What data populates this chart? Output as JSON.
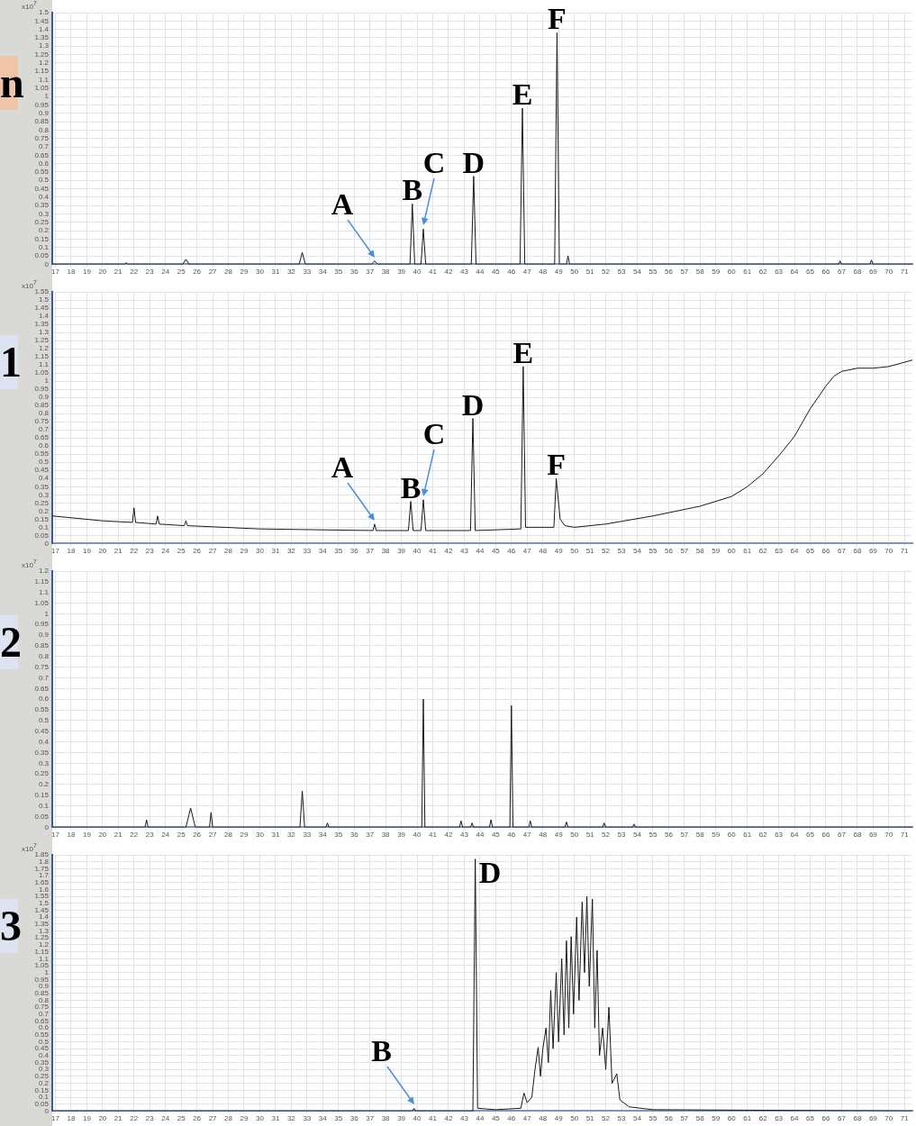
{
  "chart_data": [
    {
      "type": "line",
      "title": "n",
      "ylabel": "x10$^{7}$",
      "xlim": [
        16.8,
        71.5
      ],
      "ylim": [
        0,
        1.5
      ],
      "grid": true,
      "xticks": [
        17,
        18,
        19,
        20,
        21,
        22,
        23,
        24,
        25,
        26,
        27,
        28,
        29,
        30,
        31,
        32,
        33,
        34,
        35,
        36,
        37,
        38,
        39,
        40,
        41,
        42,
        43,
        44,
        45,
        46,
        47,
        48,
        49,
        50,
        51,
        52,
        53,
        54,
        55,
        56,
        57,
        58,
        59,
        60,
        61,
        62,
        63,
        64,
        65,
        66,
        67,
        68,
        69,
        70,
        71
      ],
      "yticks": [
        0,
        0.05,
        0.1,
        0.15,
        0.2,
        0.25,
        0.3,
        0.35,
        0.4,
        0.45,
        0.5,
        0.55,
        0.6,
        0.65,
        0.7,
        0.75,
        0.8,
        0.85,
        0.9,
        0.95,
        1,
        1.05,
        1.1,
        1.15,
        1.2,
        1.25,
        1.3,
        1.35,
        1.4,
        1.45,
        1.5
      ],
      "series": [
        {
          "color": "#1a1a1a",
          "x": [
            16.8,
            21.4,
            21.5,
            21.6,
            25.1,
            25.3,
            25.5,
            32.5,
            32.7,
            32.9,
            37.1,
            37.3,
            37.5,
            39.55,
            39.7,
            39.85,
            40.25,
            40.4,
            40.55,
            43.45,
            43.6,
            43.75,
            46.55,
            46.7,
            46.85,
            48.75,
            48.9,
            49.05,
            49.5,
            49.6,
            49.7,
            66.8,
            66.9,
            67.0,
            68.8,
            68.9,
            69.0,
            71.5
          ],
          "values": [
            0,
            0,
            0.01,
            0,
            0,
            0.03,
            0,
            0,
            0.07,
            0,
            0,
            0.02,
            0,
            0,
            0.36,
            0,
            0,
            0.21,
            0,
            0,
            0.525,
            0,
            0,
            0.93,
            0,
            0,
            1.38,
            0,
            0,
            0.05,
            0,
            0,
            0.02,
            0,
            0,
            0.025,
            0,
            0
          ]
        }
      ],
      "annotations": [
        {
          "text": "A",
          "x": 37.3,
          "y": 0.02
        },
        {
          "text": "B",
          "x": 39.7,
          "y": 0.36
        },
        {
          "text": "C",
          "x": 40.4,
          "y": 0.21
        },
        {
          "text": "D",
          "x": 43.6,
          "y": 0.525
        },
        {
          "text": "E",
          "x": 46.7,
          "y": 0.93
        },
        {
          "text": "F",
          "x": 48.9,
          "y": 1.38
        }
      ]
    },
    {
      "type": "line",
      "title": "1",
      "ylabel": "x10$^{7}$",
      "xlim": [
        16.8,
        71.5
      ],
      "ylim": [
        0,
        1.55
      ],
      "grid": true,
      "xticks": [
        17,
        18,
        19,
        20,
        21,
        22,
        23,
        24,
        25,
        26,
        27,
        28,
        29,
        30,
        31,
        32,
        33,
        34,
        35,
        36,
        37,
        38,
        39,
        40,
        41,
        42,
        43,
        44,
        45,
        46,
        47,
        48,
        49,
        50,
        51,
        52,
        53,
        54,
        55,
        56,
        57,
        58,
        59,
        60,
        61,
        62,
        63,
        64,
        65,
        66,
        67,
        68,
        69,
        70,
        71
      ],
      "yticks": [
        0,
        0.05,
        0.1,
        0.15,
        0.2,
        0.25,
        0.3,
        0.35,
        0.4,
        0.45,
        0.5,
        0.55,
        0.6,
        0.65,
        0.7,
        0.75,
        0.8,
        0.85,
        0.9,
        0.95,
        1,
        1.05,
        1.1,
        1.15,
        1.2,
        1.25,
        1.3,
        1.35,
        1.4,
        1.45,
        1.5,
        1.55
      ],
      "series": [
        {
          "color": "#1a1a1a",
          "x": [
            16.8,
            20,
            21.9,
            22,
            22.1,
            23.4,
            23.5,
            23.6,
            25.2,
            25.3,
            25.4,
            30,
            37.2,
            37.3,
            37.4,
            39.45,
            39.6,
            39.75,
            40.25,
            40.4,
            40.55,
            43.4,
            43.55,
            43.7,
            46.6,
            46.75,
            46.9,
            48.7,
            48.85,
            49.1,
            49.4,
            50,
            52,
            55,
            58,
            60,
            61,
            62,
            63,
            64,
            65,
            66,
            66.5,
            67,
            68,
            69,
            70,
            71.5
          ],
          "values": [
            0.17,
            0.14,
            0.13,
            0.22,
            0.13,
            0.12,
            0.17,
            0.12,
            0.11,
            0.14,
            0.11,
            0.09,
            0.08,
            0.12,
            0.08,
            0.08,
            0.26,
            0.08,
            0.08,
            0.27,
            0.08,
            0.08,
            0.77,
            0.08,
            0.09,
            1.09,
            0.1,
            0.1,
            0.4,
            0.15,
            0.11,
            0.1,
            0.12,
            0.17,
            0.23,
            0.29,
            0.35,
            0.43,
            0.54,
            0.66,
            0.83,
            0.97,
            1.03,
            1.06,
            1.08,
            1.08,
            1.09,
            1.13
          ]
        }
      ],
      "annotations": [
        {
          "text": "A",
          "x": 37.3,
          "y": 0.12
        },
        {
          "text": "B",
          "x": 39.6,
          "y": 0.26
        },
        {
          "text": "C",
          "x": 40.4,
          "y": 0.27
        },
        {
          "text": "D",
          "x": 43.55,
          "y": 0.77
        },
        {
          "text": "E",
          "x": 46.75,
          "y": 1.09
        },
        {
          "text": "F",
          "x": 48.85,
          "y": 0.4
        }
      ]
    },
    {
      "type": "line",
      "title": "2",
      "ylabel": "x10$^{7}$",
      "xlim": [
        16.8,
        71.5
      ],
      "ylim": [
        0,
        1.2
      ],
      "grid": true,
      "xticks": [
        17,
        18,
        19,
        20,
        21,
        22,
        23,
        24,
        25,
        26,
        27,
        28,
        29,
        30,
        31,
        32,
        33,
        34,
        35,
        36,
        37,
        38,
        39,
        40,
        41,
        42,
        43,
        44,
        45,
        46,
        47,
        48,
        49,
        50,
        51,
        52,
        53,
        54,
        55,
        56,
        57,
        58,
        59,
        60,
        61,
        62,
        63,
        64,
        65,
        66,
        67,
        68,
        69,
        70,
        71
      ],
      "yticks": [
        0,
        0.05,
        0.1,
        0.15,
        0.2,
        0.25,
        0.3,
        0.35,
        0.4,
        0.45,
        0.5,
        0.55,
        0.6,
        0.65,
        0.7,
        0.75,
        0.8,
        0.85,
        0.9,
        0.95,
        1,
        1.05,
        1.1,
        1.15,
        1.2
      ],
      "series": [
        {
          "color": "#1a1a1a",
          "x": [
            16.8,
            22.7,
            22.8,
            22.9,
            25.3,
            25.6,
            25.9,
            26.8,
            26.9,
            27,
            32.55,
            32.7,
            32.85,
            34.2,
            34.3,
            34.4,
            40.3,
            40.4,
            40.5,
            42.7,
            42.8,
            42.9,
            43.4,
            43.5,
            43.6,
            44.6,
            44.7,
            44.8,
            45.9,
            46,
            46.1,
            47.1,
            47.2,
            47.3,
            49.4,
            49.5,
            49.6,
            51.8,
            51.9,
            52,
            53.7,
            53.8,
            53.9,
            71.5
          ],
          "values": [
            0,
            0,
            0.035,
            0,
            0,
            0.09,
            0,
            0,
            0.07,
            0,
            0,
            0.17,
            0,
            0,
            0.02,
            0,
            0,
            0.6,
            0,
            0,
            0.03,
            0,
            0,
            0.02,
            0,
            0,
            0.035,
            0,
            0,
            0.57,
            0,
            0,
            0.03,
            0,
            0,
            0.025,
            0,
            0,
            0.02,
            0,
            0,
            0.015,
            0,
            0
          ]
        }
      ]
    },
    {
      "type": "line",
      "title": "3",
      "ylabel": "x10$^{7}$",
      "xlim": [
        16.8,
        71.5
      ],
      "ylim": [
        0,
        1.85
      ],
      "grid": true,
      "xticks": [
        17,
        18,
        19,
        20,
        21,
        22,
        23,
        24,
        25,
        26,
        27,
        28,
        29,
        30,
        31,
        32,
        33,
        34,
        35,
        36,
        37,
        38,
        39,
        40,
        41,
        42,
        43,
        44,
        45,
        46,
        47,
        48,
        49,
        50,
        51,
        52,
        53,
        54,
        55,
        56,
        57,
        58,
        59,
        60,
        61,
        62,
        63,
        64,
        65,
        66,
        67,
        68,
        69,
        70,
        71
      ],
      "yticks": [
        0,
        0.05,
        0.1,
        0.15,
        0.2,
        0.25,
        0.3,
        0.35,
        0.4,
        0.45,
        0.5,
        0.55,
        0.6,
        0.65,
        0.7,
        0.75,
        0.8,
        0.85,
        0.9,
        0.95,
        1,
        1.05,
        1.1,
        1.15,
        1.2,
        1.25,
        1.3,
        1.35,
        1.4,
        1.45,
        1.5,
        1.55,
        1.6,
        1.65,
        1.7,
        1.75,
        1.8,
        1.85
      ],
      "series": [
        {
          "color": "#1a1a1a",
          "x": [
            16.8,
            39.7,
            39.8,
            39.9,
            43.55,
            43.7,
            43.85,
            45,
            46.6,
            46.8,
            47,
            47.3,
            47.5,
            47.7,
            47.85,
            48.0,
            48.2,
            48.35,
            48.5,
            48.65,
            48.85,
            49.0,
            49.2,
            49.35,
            49.5,
            49.65,
            49.8,
            49.95,
            50.15,
            50.3,
            50.5,
            50.65,
            50.8,
            50.95,
            51.15,
            51.3,
            51.45,
            51.6,
            51.8,
            52.0,
            52.2,
            52.4,
            52.7,
            52.9,
            53.5,
            55,
            71.5
          ],
          "values": [
            0,
            0,
            0.02,
            0,
            0,
            1.82,
            0.02,
            0.01,
            0.02,
            0.13,
            0.06,
            0.1,
            0.3,
            0.46,
            0.25,
            0.45,
            0.6,
            0.35,
            0.87,
            0.45,
            1.0,
            0.5,
            1.1,
            0.55,
            1.23,
            0.6,
            1.26,
            0.7,
            1.4,
            0.8,
            1.51,
            1.0,
            1.55,
            0.9,
            1.53,
            0.6,
            1.16,
            0.4,
            0.6,
            0.3,
            0.75,
            0.2,
            0.27,
            0.08,
            0.03,
            0.01,
            0
          ]
        }
      ],
      "annotations": [
        {
          "text": "B",
          "x": 39.8,
          "y": 0.02
        },
        {
          "text": "D",
          "x": 43.7,
          "y": 1.82
        }
      ]
    }
  ]
}
